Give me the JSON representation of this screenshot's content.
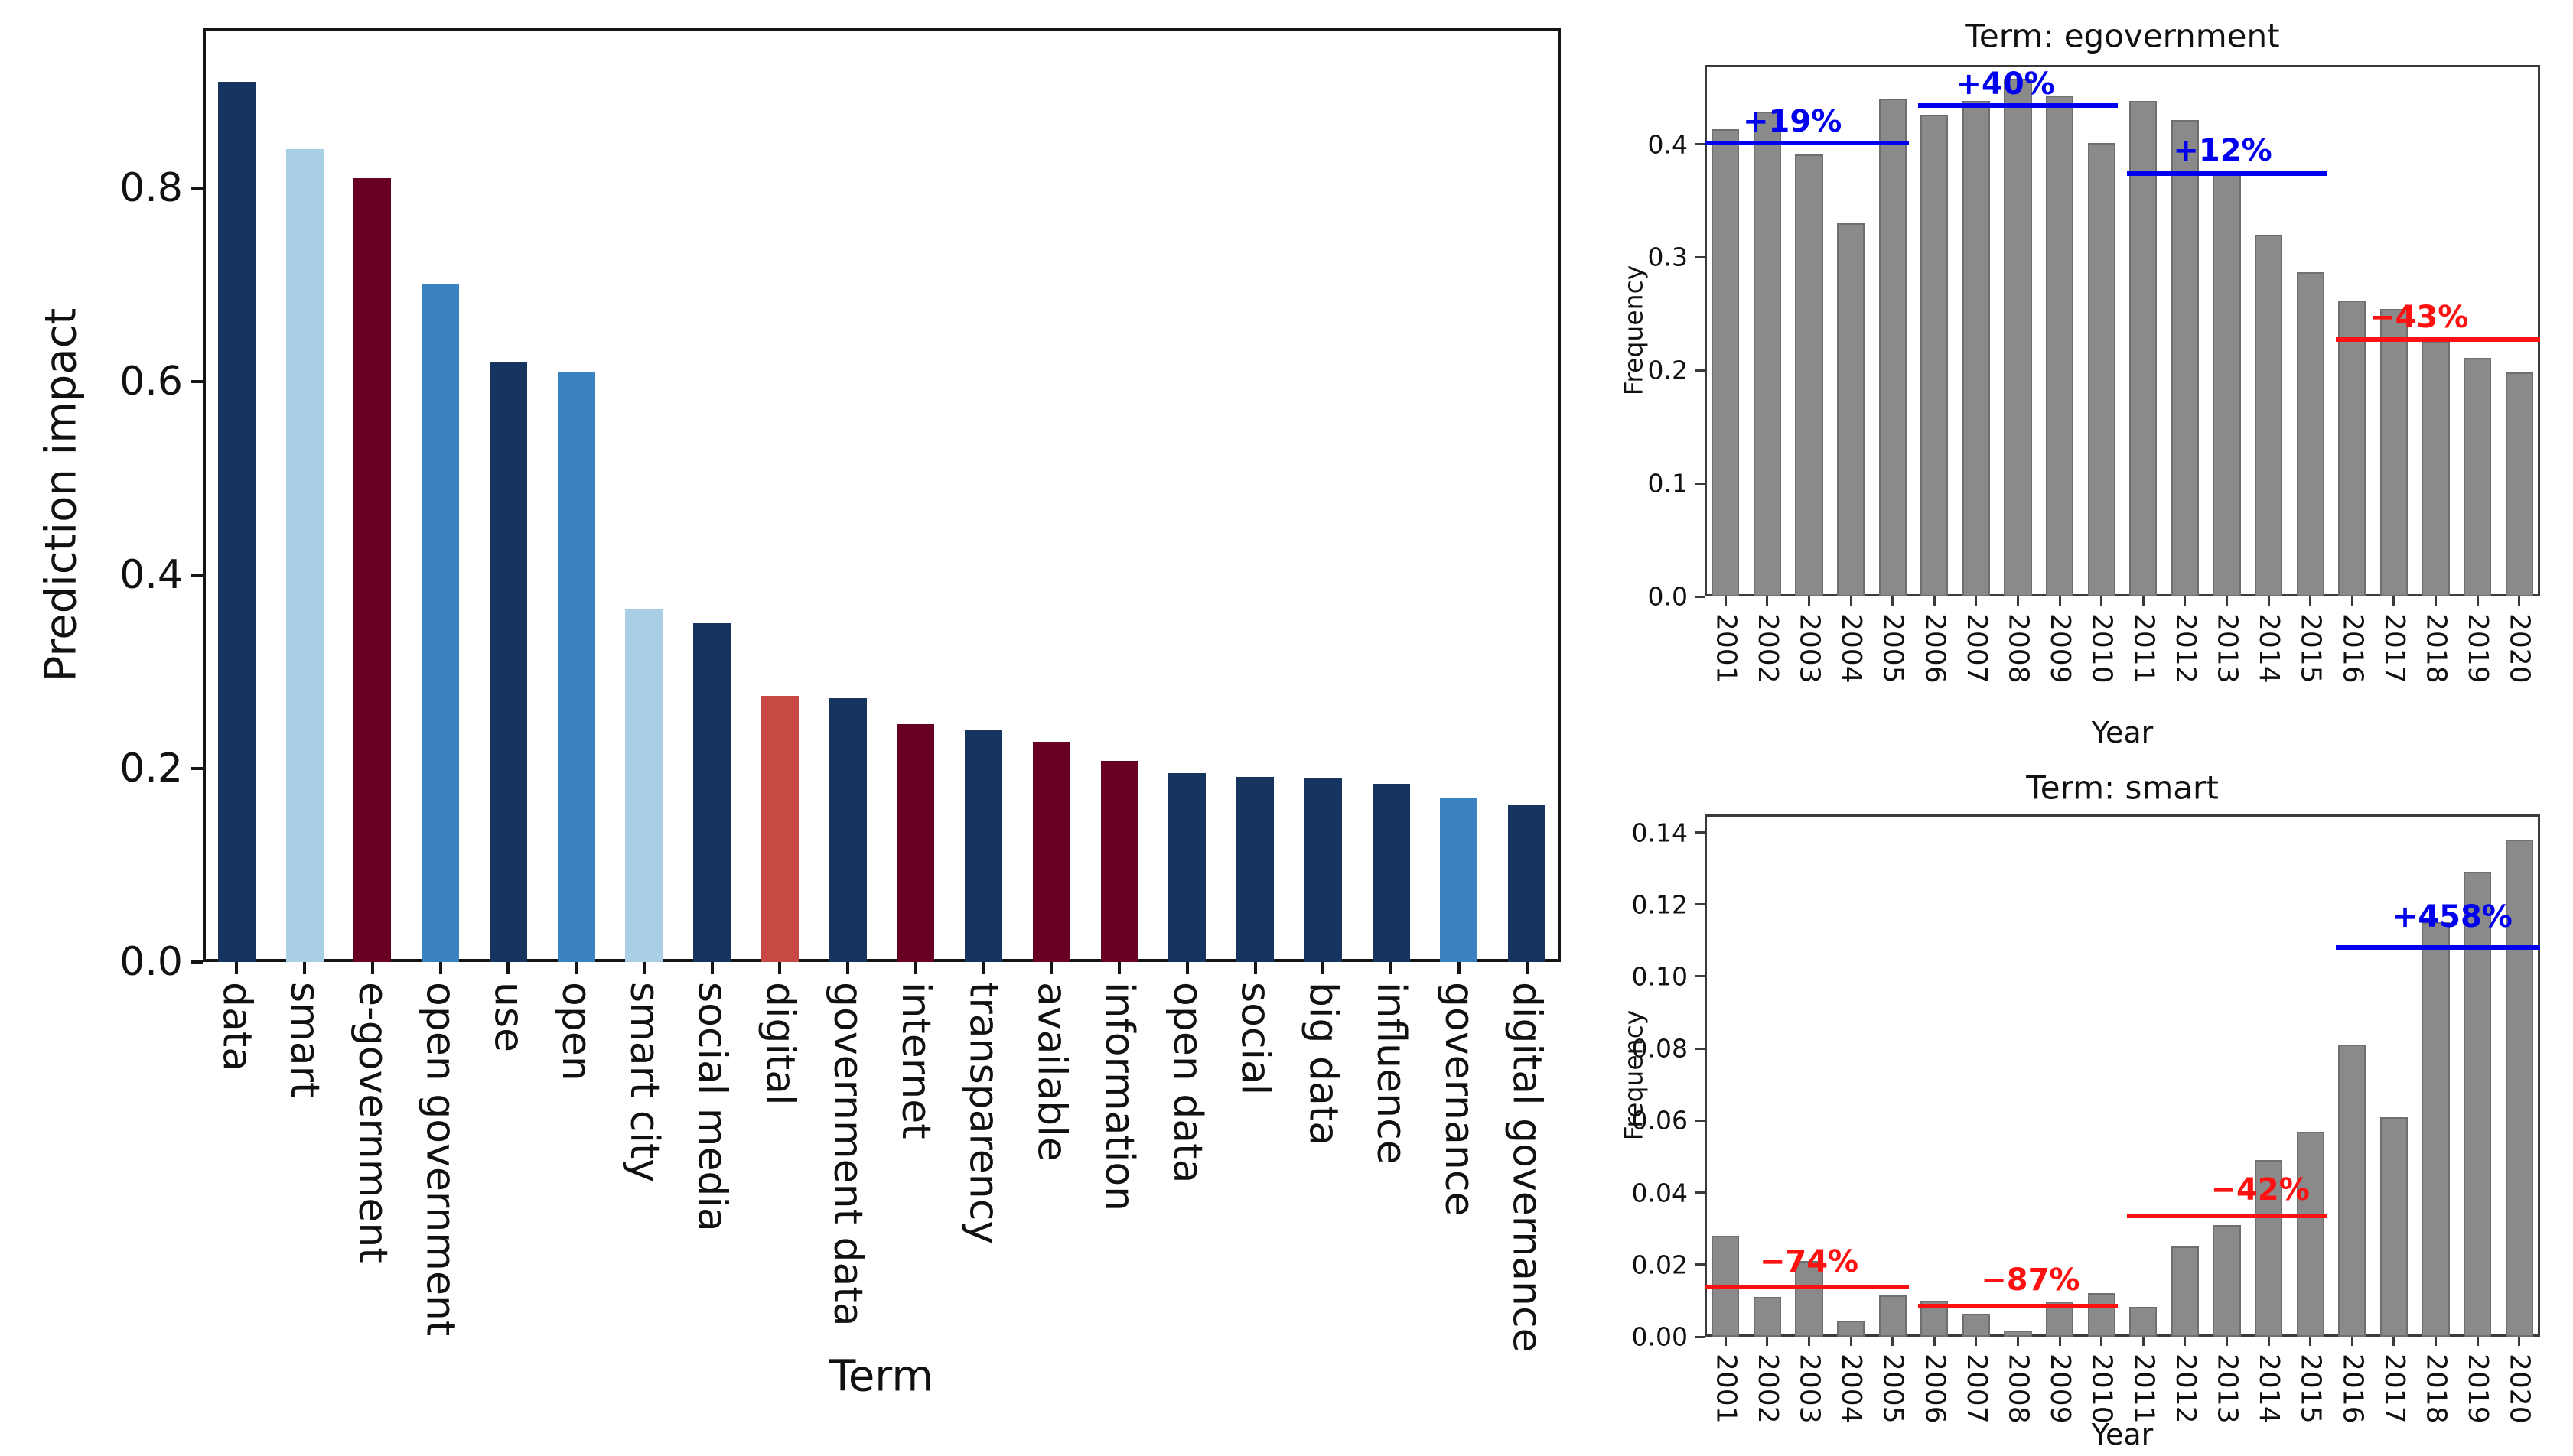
{
  "colors": {
    "navy": "#15355f",
    "light_blue": "#a9cfe4",
    "mid_blue": "#3a82c0",
    "maroon": "#670022",
    "salmon": "#c64a43",
    "gray_bar": "#8a8a8a",
    "gray_bar_edge": "#6f6f6f",
    "annotation_blue": "#0000ee",
    "annotation_red": "#ff1111"
  },
  "chart_data": [
    {
      "id": "prediction-impact",
      "type": "bar",
      "title": "",
      "xlabel": "Term",
      "ylabel": "Prediction impact",
      "ylim": [
        0,
        0.965
      ],
      "grid": false,
      "legend": null,
      "yticks": [
        {
          "value": 0.0,
          "label": "0.0"
        },
        {
          "value": 0.2,
          "label": "0.2"
        },
        {
          "value": 0.4,
          "label": "0.4"
        },
        {
          "value": 0.6,
          "label": "0.6"
        },
        {
          "value": 0.8,
          "label": "0.8"
        }
      ],
      "categories": [
        "data",
        "smart",
        "e-government",
        "open government",
        "use",
        "open",
        "smart city",
        "social media",
        "digital",
        "government data",
        "internet",
        "transparency",
        "available",
        "information",
        "open data",
        "social",
        "big data",
        "influence",
        "governance",
        "digital governance"
      ],
      "values": [
        0.91,
        0.84,
        0.81,
        0.7,
        0.62,
        0.61,
        0.365,
        0.35,
        0.275,
        0.273,
        0.246,
        0.24,
        0.228,
        0.208,
        0.195,
        0.191,
        0.19,
        0.184,
        0.169,
        0.162
      ],
      "bar_color_keys": [
        "navy",
        "light_blue",
        "maroon",
        "mid_blue",
        "navy",
        "mid_blue",
        "light_blue",
        "navy",
        "salmon",
        "navy",
        "maroon",
        "navy",
        "maroon",
        "maroon",
        "navy",
        "navy",
        "navy",
        "navy",
        "mid_blue",
        "navy"
      ],
      "annotations": []
    },
    {
      "id": "egovernment-frequency",
      "type": "bar",
      "title": "Term: egovernment",
      "xlabel": "Year",
      "ylabel": "Frequency",
      "ylim": [
        0,
        0.47
      ],
      "grid": false,
      "legend": null,
      "yticks": [
        {
          "value": 0.0,
          "label": "0.0"
        },
        {
          "value": 0.1,
          "label": "0.1"
        },
        {
          "value": 0.2,
          "label": "0.2"
        },
        {
          "value": 0.3,
          "label": "0.3"
        },
        {
          "value": 0.4,
          "label": "0.4"
        }
      ],
      "categories": [
        "2001",
        "2002",
        "2003",
        "2004",
        "2005",
        "2006",
        "2007",
        "2008",
        "2009",
        "2010",
        "2011",
        "2012",
        "2013",
        "2014",
        "2015",
        "2016",
        "2017",
        "2018",
        "2019",
        "2020"
      ],
      "values": [
        0.413,
        0.429,
        0.391,
        0.33,
        0.44,
        0.426,
        0.438,
        0.458,
        0.443,
        0.401,
        0.438,
        0.421,
        0.376,
        0.32,
        0.287,
        0.262,
        0.254,
        0.226,
        0.211,
        0.198
      ],
      "bar_color_keys": null,
      "annotations": [
        {
          "label": "+19%",
          "color_key": "annotation_blue",
          "line_y": 0.401,
          "from_index": 0,
          "to_index": 4,
          "from_edge": true,
          "to_edge": false,
          "label_index": 1.6,
          "label_y": 0.42
        },
        {
          "label": "+40%",
          "color_key": "annotation_blue",
          "line_y": 0.434,
          "from_index": 5,
          "to_index": 9,
          "from_edge": false,
          "to_edge": false,
          "label_index": 6.7,
          "label_y": 0.453
        },
        {
          "label": "+12%",
          "color_key": "annotation_blue",
          "line_y": 0.374,
          "from_index": 10,
          "to_index": 14,
          "from_edge": false,
          "to_edge": false,
          "label_index": 11.9,
          "label_y": 0.394
        },
        {
          "label": "−43%",
          "color_key": "annotation_red",
          "line_y": 0.227,
          "from_index": 15,
          "to_index": 19,
          "from_edge": false,
          "to_edge": true,
          "label_index": 16.6,
          "label_y": 0.247
        }
      ]
    },
    {
      "id": "smart-frequency",
      "type": "bar",
      "title": "Term: smart",
      "xlabel": "Year",
      "ylabel": "Frequency",
      "ylim": [
        0,
        0.145
      ],
      "grid": false,
      "legend": null,
      "yticks": [
        {
          "value": 0.0,
          "label": "0.00"
        },
        {
          "value": 0.02,
          "label": "0.02"
        },
        {
          "value": 0.04,
          "label": "0.04"
        },
        {
          "value": 0.06,
          "label": "0.06"
        },
        {
          "value": 0.08,
          "label": "0.08"
        },
        {
          "value": 0.1,
          "label": "0.10"
        },
        {
          "value": 0.12,
          "label": "0.12"
        },
        {
          "value": 0.14,
          "label": "0.14"
        }
      ],
      "categories": [
        "2001",
        "2002",
        "2003",
        "2004",
        "2005",
        "2006",
        "2007",
        "2008",
        "2009",
        "2010",
        "2011",
        "2012",
        "2013",
        "2014",
        "2015",
        "2016",
        "2017",
        "2018",
        "2019",
        "2020"
      ],
      "values": [
        0.028,
        0.011,
        0.021,
        0.0045,
        0.0115,
        0.01,
        0.0063,
        0.0017,
        0.0097,
        0.012,
        0.0082,
        0.025,
        0.031,
        0.049,
        0.057,
        0.081,
        0.061,
        0.115,
        0.129,
        0.138
      ],
      "bar_color_keys": null,
      "annotations": [
        {
          "label": "−74%",
          "color_key": "annotation_red",
          "line_y": 0.0138,
          "from_index": 0,
          "to_index": 4,
          "from_edge": true,
          "to_edge": false,
          "label_index": 2.0,
          "label_y": 0.0208
        },
        {
          "label": "−87%",
          "color_key": "annotation_red",
          "line_y": 0.0084,
          "from_index": 5,
          "to_index": 9,
          "from_edge": false,
          "to_edge": false,
          "label_index": 7.3,
          "label_y": 0.0158
        },
        {
          "label": "−42%",
          "color_key": "annotation_red",
          "line_y": 0.0335,
          "from_index": 10,
          "to_index": 14,
          "from_edge": false,
          "to_edge": false,
          "label_index": 12.8,
          "label_y": 0.0408
        },
        {
          "label": "+458%",
          "color_key": "annotation_blue",
          "line_y": 0.108,
          "from_index": 15,
          "to_index": 19,
          "from_edge": false,
          "to_edge": true,
          "label_index": 17.4,
          "label_y": 0.1165
        }
      ]
    }
  ]
}
